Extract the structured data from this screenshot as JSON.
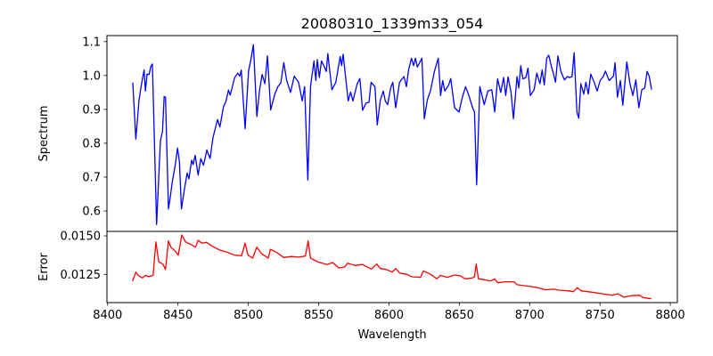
{
  "chart_data": [
    {
      "type": "line",
      "title": "20080310_1339m33_054",
      "xlabel": "",
      "ylabel": "Spectrum",
      "xlim": [
        8399.5,
        8805
      ],
      "ylim": [
        0.5397,
        1.1178
      ],
      "grid": false,
      "color": "#0000ff",
      "yticks": [
        0.6,
        0.7,
        0.8,
        0.9,
        1.0,
        1.1
      ],
      "ytick_labels": [
        "0.6",
        "0.7",
        "0.8",
        "0.9",
        "1.0",
        "1.1"
      ],
      "x": [
        8417.9,
        8420.0,
        8422.3,
        8423.8,
        8425.9,
        8426.9,
        8428.0,
        8429.5,
        8430.7,
        8431.8,
        8434.8,
        8437.5,
        8439.0,
        8440.2,
        8441.1,
        8443.2,
        8444.5,
        8445.9,
        8448.1,
        8449.7,
        8451.0,
        8452.5,
        8454.4,
        8456.5,
        8457.8,
        8459.7,
        8460.8,
        8462.2,
        8464.3,
        8466.2,
        8468.1,
        8470.5,
        8472.8,
        8474.9,
        8478.1,
        8479.8,
        8482.3,
        8484.0,
        8485.9,
        8487.1,
        8490.3,
        8492.5,
        8493.9,
        8495.0,
        8497.7,
        8500.2,
        8502.0,
        8503.6,
        8506.1,
        8507.9,
        8509.8,
        8511.8,
        8513.6,
        8515.9,
        8518.8,
        8521.0,
        8523.1,
        8525.2,
        8527.3,
        8530.0,
        8532.6,
        8535.7,
        8538.3,
        8540.0,
        8542.3,
        8544.2,
        8546.7,
        8548.0,
        8549.0,
        8550.5,
        8552.0,
        8553.7,
        8555.4,
        8556.5,
        8559.4,
        8562.2,
        8565.3,
        8566.3,
        8567.4,
        8571.0,
        8572.7,
        8574.4,
        8577.4,
        8579.3,
        8581.2,
        8583.7,
        8585.8,
        8587.3,
        8590.0,
        8591.7,
        8593.8,
        8595.9,
        8597.4,
        8599.1,
        8601.2,
        8602.7,
        8604.8,
        8607.5,
        8610.7,
        8612.4,
        8613.9,
        8616.0,
        8617.5,
        8618.8,
        8620.2,
        8623.4,
        8625.1,
        8627.2,
        8629.7,
        8632.3,
        8635.0,
        8636.7,
        8638.2,
        8639.7,
        8642.4,
        8643.9,
        8646.6,
        8649.8,
        8651.9,
        8654.4,
        8656.8,
        8659.3,
        8660.8,
        8662.3,
        8664.6,
        8667.7,
        8670.3,
        8673.1,
        8675.2,
        8677.2,
        8679.4,
        8681.5,
        8683.0,
        8684.7,
        8686.8,
        8688.5,
        8691.0,
        8692.3,
        8693.7,
        8695.2,
        8697.3,
        8698.8,
        8700.5,
        8703.2,
        8705.1,
        8707.3,
        8708.9,
        8710.4,
        8712.1,
        8713.6,
        8715.3,
        8716.8,
        8718.4,
        8720.1,
        8722.2,
        8724.7,
        8726.9,
        8728.4,
        8730.1,
        8731.6,
        8733.6,
        8734.9,
        8736.4,
        8738.5,
        8740.0,
        8741.7,
        8743.4,
        8745.9,
        8748.0,
        8750.1,
        8752.3,
        8753.9,
        8756.5,
        8759.6,
        8760.7,
        8762.4,
        8764.5,
        8766.2,
        8769.1,
        8771.3,
        8773.4,
        8775.5,
        8777.6,
        8779.7,
        8781.8,
        8783.5,
        8785.0,
        8786.7
      ],
      "y": [
        0.979,
        0.812,
        0.927,
        0.969,
        1.016,
        0.954,
        1.004,
        1.003,
        1.027,
        1.034,
        0.56,
        0.808,
        0.834,
        0.938,
        0.936,
        0.606,
        0.64,
        0.684,
        0.737,
        0.786,
        0.746,
        0.606,
        0.659,
        0.712,
        0.695,
        0.75,
        0.737,
        0.764,
        0.706,
        0.755,
        0.735,
        0.78,
        0.755,
        0.817,
        0.87,
        0.848,
        0.907,
        0.923,
        0.957,
        0.942,
        0.994,
        1.007,
        0.998,
        1.016,
        0.843,
        1.013,
        1.051,
        1.091,
        0.879,
        0.954,
        1.003,
        0.976,
        1.058,
        0.898,
        0.945,
        0.967,
        0.978,
        1.038,
        0.985,
        0.95,
        0.998,
        0.98,
        0.925,
        0.967,
        0.691,
        0.967,
        1.043,
        0.985,
        1.047,
        0.994,
        1.043,
        1.029,
        1.012,
        1.065,
        0.958,
        0.98,
        1.056,
        1.029,
        1.063,
        0.925,
        0.951,
        0.925,
        0.976,
        0.991,
        0.897,
        0.919,
        0.921,
        0.98,
        0.967,
        0.854,
        0.927,
        0.954,
        0.925,
        0.914,
        0.963,
        0.98,
        0.905,
        0.98,
        0.997,
        0.967,
        1.016,
        1.051,
        1.029,
        1.051,
        1.025,
        1.051,
        0.872,
        0.927,
        0.958,
        1.012,
        1.051,
        0.941,
        0.985,
        0.954,
        0.972,
        0.991,
        0.905,
        0.892,
        0.932,
        0.967,
        0.941,
        0.907,
        0.892,
        0.677,
        0.967,
        0.914,
        0.954,
        0.958,
        0.892,
        0.99,
        0.95,
        0.994,
        0.941,
        0.996,
        0.95,
        0.872,
        0.997,
        0.963,
        1.029,
        0.99,
        0.994,
        1.022,
        0.941,
        0.958,
        1.007,
        0.976,
        1.016,
        0.972,
        1.051,
        1.06,
        1.029,
        1.007,
        0.98,
        1.058,
        1.012,
        0.987,
        0.997,
        0.994,
        0.997,
        1.067,
        0.892,
        0.874,
        0.976,
        0.945,
        0.98,
        0.945,
        1.004,
        0.98,
        0.954,
        0.985,
        0.997,
        1.013,
        0.985,
        0.998,
        1.038,
        0.936,
        0.985,
        0.912,
        1.04,
        0.976,
        0.941,
        0.987,
        0.905,
        0.958,
        0.963,
        1.012,
        0.998,
        0.958
      ]
    },
    {
      "type": "line",
      "title": "",
      "xlabel": "Wavelength",
      "ylabel": "Error",
      "xlim": [
        8399.5,
        8805
      ],
      "ylim": [
        0.01067,
        0.01529
      ],
      "grid": false,
      "color": "#ff0000",
      "xticks": [
        8400,
        8450,
        8500,
        8550,
        8600,
        8650,
        8700,
        8750,
        8800
      ],
      "xtick_labels": [
        "8400",
        "8450",
        "8500",
        "8550",
        "8600",
        "8650",
        "8700",
        "8750",
        "8800"
      ],
      "yticks": [
        0.0125,
        0.015
      ],
      "ytick_labels": [
        "0.0125",
        "0.0150"
      ],
      "x": [
        8417.7,
        8420.0,
        8421.7,
        8424.8,
        8426.9,
        8429.1,
        8432.3,
        8434.3,
        8436.4,
        8439.2,
        8441.1,
        8443.2,
        8444.9,
        8448.1,
        8450.2,
        8452.7,
        8455.4,
        8459.7,
        8462.4,
        8464.3,
        8467.1,
        8470.3,
        8474.5,
        8479.8,
        8485.0,
        8490.3,
        8495.2,
        8497.7,
        8499.8,
        8503.0,
        8506.1,
        8509.3,
        8512.5,
        8514.2,
        8515.7,
        8519.9,
        8525.2,
        8530.5,
        8535.7,
        8540.6,
        8542.5,
        8544.2,
        8549.5,
        8555.8,
        8560.0,
        8564.3,
        8568.5,
        8570.6,
        8575.9,
        8581.2,
        8587.5,
        8591.3,
        8593.8,
        8598.0,
        8602.3,
        8604.8,
        8607.5,
        8612.9,
        8616.0,
        8622.4,
        8624.5,
        8629.7,
        8634.0,
        8636.5,
        8641.4,
        8646.6,
        8650.9,
        8654.0,
        8659.3,
        8660.8,
        8662.0,
        8663.6,
        8667.7,
        8672.0,
        8675.2,
        8677.2,
        8682.6,
        8688.9,
        8691.0,
        8699.4,
        8705.8,
        8711.1,
        8717.4,
        8720.6,
        8726.9,
        8731.1,
        8733.9,
        8736.4,
        8743.8,
        8751.2,
        8758.6,
        8762.8,
        8767.0,
        8772.3,
        8778.0,
        8780.8,
        8786.5
      ],
      "y": [
        0.01206,
        0.01265,
        0.01244,
        0.01227,
        0.01244,
        0.01235,
        0.01244,
        0.01461,
        0.01331,
        0.01317,
        0.01282,
        0.01467,
        0.01427,
        0.014,
        0.01375,
        0.01506,
        0.01461,
        0.01442,
        0.01427,
        0.01471,
        0.01452,
        0.01458,
        0.01432,
        0.01408,
        0.01394,
        0.01375,
        0.01371,
        0.01452,
        0.01375,
        0.01356,
        0.01427,
        0.01385,
        0.01366,
        0.01356,
        0.01413,
        0.01394,
        0.0136,
        0.01366,
        0.01362,
        0.01369,
        0.01467,
        0.01356,
        0.01331,
        0.01314,
        0.01327,
        0.01292,
        0.01298,
        0.01323,
        0.01308,
        0.01314,
        0.01285,
        0.01317,
        0.01288,
        0.01282,
        0.01265,
        0.01288,
        0.01259,
        0.0125,
        0.01235,
        0.01231,
        0.01273,
        0.0125,
        0.01221,
        0.01244,
        0.01231,
        0.01246,
        0.0124,
        0.01221,
        0.01227,
        0.01235,
        0.01317,
        0.01221,
        0.01216,
        0.01207,
        0.01221,
        0.01196,
        0.01202,
        0.01202,
        0.01183,
        0.01173,
        0.01164,
        0.0115,
        0.01154,
        0.01148,
        0.01144,
        0.01138,
        0.01164,
        0.01144,
        0.01135,
        0.01125,
        0.01115,
        0.01125,
        0.01102,
        0.01112,
        0.01115,
        0.011,
        0.01092
      ]
    }
  ]
}
